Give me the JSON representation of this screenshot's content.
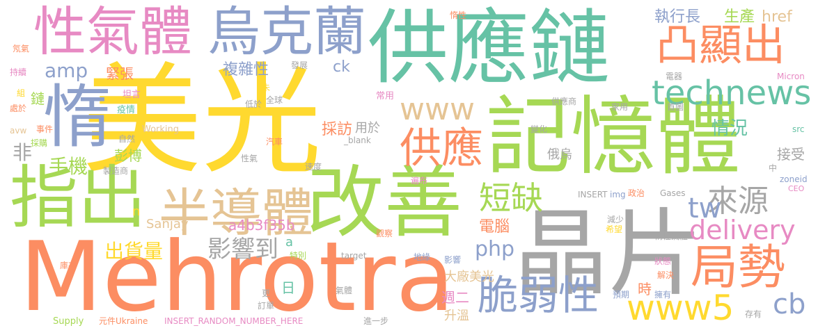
{
  "words": [
    {
      "text": "美光",
      "color": "#ffd92f"
    },
    {
      "text": "Mehrotra",
      "color": "#fc8d62"
    },
    {
      "text": "晶片",
      "color": "#a6a6a6"
    },
    {
      "text": "記憶體",
      "color": "#a6d854"
    },
    {
      "text": "供應鏈",
      "color": "#66c2a5"
    },
    {
      "text": "改善",
      "color": "#a6d854"
    },
    {
      "text": "指出",
      "color": "#a6d854"
    },
    {
      "text": "惰",
      "color": "#8da0cb"
    },
    {
      "text": "性氣體",
      "color": "#e78ac3"
    },
    {
      "text": "烏克蘭",
      "color": "#8da0cb"
    },
    {
      "text": "半導體",
      "color": "#e5c494"
    },
    {
      "text": "局勢",
      "color": "#fc8d62"
    },
    {
      "text": "凸顯出",
      "color": "#fc8d62"
    },
    {
      "text": "供應",
      "color": "#fc8d62"
    },
    {
      "text": "脆弱性",
      "color": "#8da0cb"
    },
    {
      "text": "technews",
      "color": "#66c2a5"
    },
    {
      "text": "www5",
      "color": "#ffd92f"
    },
    {
      "text": "delivery",
      "color": "#e78ac3"
    },
    {
      "text": "短缺",
      "color": "#a6d854"
    },
    {
      "text": "來源",
      "color": "#a6a6a6"
    },
    {
      "text": "www",
      "color": "#e5c494"
    },
    {
      "text": "影響到",
      "color": "#a6a6a6"
    },
    {
      "text": "cb",
      "color": "#8da0cb"
    },
    {
      "text": "tw",
      "color": "#8da0cb"
    },
    {
      "text": "php",
      "color": "#8da0cb"
    },
    {
      "text": "amp",
      "color": "#8da0cb"
    },
    {
      "text": "手機",
      "color": "#a6d854"
    },
    {
      "text": "出貨量",
      "color": "#ffd92f"
    },
    {
      "text": "情況",
      "color": "#66c2a5"
    },
    {
      "text": "執行長",
      "color": "#8da0cb"
    },
    {
      "text": "生產",
      "color": "#a6d854"
    },
    {
      "text": "href",
      "color": "#e5c494"
    },
    {
      "text": "緊張",
      "color": "#fc8d62"
    },
    {
      "text": "複雜性",
      "color": "#8da0cb"
    },
    {
      "text": "ck",
      "color": "#8da0cb"
    },
    {
      "text": "採訪",
      "color": "#fc8d62"
    },
    {
      "text": "用於",
      "color": "#a6a6a6"
    },
    {
      "text": "非",
      "color": "#a6a6a6"
    },
    {
      "text": "鏈",
      "color": "#a6d854"
    },
    {
      "text": "彭博",
      "color": "#a6d854"
    },
    {
      "text": "a4b3f35b",
      "color": "#e78ac3"
    },
    {
      "text": "Sanjay",
      "color": "#e5c494"
    },
    {
      "text": "電腦",
      "color": "#fc8d62"
    },
    {
      "text": "俄烏",
      "color": "#a6a6a6"
    },
    {
      "text": "接受",
      "color": "#a6a6a6"
    },
    {
      "text": "大廠美光",
      "color": "#e5c494"
    },
    {
      "text": "週二",
      "color": "#e78ac3"
    },
    {
      "text": "升溫",
      "color": "#e5c494"
    },
    {
      "text": "時",
      "color": "#fc8d62"
    },
    {
      "text": "日",
      "color": "#66c2a5"
    },
    {
      "text": "a",
      "color": "#66c2a5"
    },
    {
      "text": "n",
      "color": "#ffd92f"
    },
    {
      "text": "坦言",
      "color": "#e78ac3"
    },
    {
      "text": "疫情",
      "color": "#66c2a5"
    },
    {
      "text": "自然",
      "color": "#a6a6a6"
    },
    {
      "text": "Working",
      "color": "#e5c494"
    },
    {
      "text": "全球",
      "color": "#a6a6a6"
    },
    {
      "text": "低於",
      "color": "#a6a6a6"
    },
    {
      "text": "_blank",
      "color": "#a6a6a6"
    },
    {
      "text": "汽車",
      "color": "#fc8d62"
    },
    {
      "text": "發展",
      "color": "#a6a6a6"
    },
    {
      "text": "未",
      "color": "#ffd92f"
    },
    {
      "text": "常用",
      "color": "#e78ac3"
    },
    {
      "text": "惰性",
      "color": "#fc8d62"
    },
    {
      "text": "電器",
      "color": "#a6a6a6"
    },
    {
      "text": "Micron",
      "color": "#e78ac3"
    },
    {
      "text": "src",
      "color": "#66c2a5"
    },
    {
      "text": "首圖",
      "color": "#a6a6a6"
    },
    {
      "text": "家用",
      "color": "#a6a6a6"
    },
    {
      "text": "供應商",
      "color": "#a6a6a6"
    },
    {
      "text": "變化",
      "color": "#a6a6a6"
    },
    {
      "text": "氖氣",
      "color": "#fc8d62"
    },
    {
      "text": "持續",
      "color": "#e78ac3"
    },
    {
      "text": "組",
      "color": "#ffd92f"
    },
    {
      "text": "處於",
      "color": "#fc8d62"
    },
    {
      "text": "avw",
      "color": "#e5c494"
    },
    {
      "text": "事件",
      "color": "#fc8d62"
    },
    {
      "text": "採購",
      "color": "#a6d854"
    },
    {
      "text": "製造商",
      "color": "#a6a6a6"
    },
    {
      "text": "性氣",
      "color": "#a6a6a6"
    },
    {
      "text": "速度",
      "color": "#a6a6a6"
    },
    {
      "text": "遍布",
      "color": "#e78ac3"
    },
    {
      "text": "INSERT",
      "color": "#a6a6a6"
    },
    {
      "text": "img",
      "color": "#8da0cb"
    },
    {
      "text": "政治",
      "color": "#fc8d62"
    },
    {
      "text": "Gases",
      "color": "#a6a6a6"
    },
    {
      "text": "zoneid",
      "color": "#8da0cb"
    },
    {
      "text": "CEO",
      "color": "#e78ac3"
    },
    {
      "text": "中",
      "color": "#a6a6a6"
    },
    {
      "text": "減少",
      "color": "#a6a6a6"
    },
    {
      "text": "希望",
      "color": "#ffd92f"
    },
    {
      "text": "惰性氣體",
      "color": "#a6a6a6"
    },
    {
      "text": "觀察",
      "color": "#fc8d62"
    },
    {
      "text": "特別",
      "color": "#a6d854"
    },
    {
      "text": "target",
      "color": "#a6a6a6"
    },
    {
      "text": "地緣",
      "color": "#8da0cb"
    },
    {
      "text": "影響",
      "color": "#8da0cb"
    },
    {
      "text": "狀態",
      "color": "#e78ac3"
    },
    {
      "text": "解決",
      "color": "#fc8d62"
    },
    {
      "text": "預期",
      "color": "#8da0cb"
    },
    {
      "text": "擁有",
      "color": "#8da0cb"
    },
    {
      "text": "庫存",
      "color": "#fc8d62"
    },
    {
      "text": "更",
      "color": "#a6a6a6"
    },
    {
      "text": "訂單",
      "color": "#a6a6a6"
    },
    {
      "text": "氣體",
      "color": "#a6a6a6"
    },
    {
      "text": "Supply",
      "color": "#a6d854"
    },
    {
      "text": "元件Ukraine",
      "color": "#fc8d62"
    },
    {
      "text": "INSERT_RANDOM_NUMBER_HERE",
      "color": "#e78ac3"
    },
    {
      "text": "進一步",
      "color": "#a6a6a6"
    },
    {
      "text": "存有",
      "color": "#a6a6a6"
    }
  ]
}
